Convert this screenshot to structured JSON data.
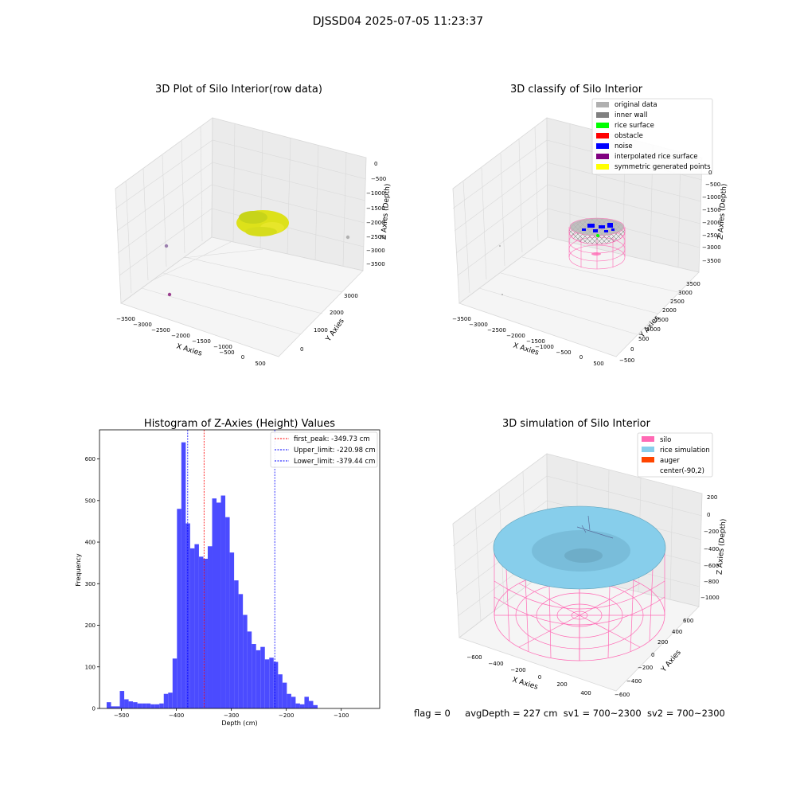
{
  "suptitle": "DJSSD04 2025-07-05 11:23:37",
  "footer": {
    "flag": "flag = 0",
    "avg_depth": "avgDepth = 227 cm",
    "sv1": "sv1 = 700~2300",
    "sv2": "sv2 = 700~2300"
  },
  "chart_data": [
    {
      "type": "scatter",
      "projection": "3d",
      "title": "3D Plot of Silo Interior(row data)",
      "xlabel": "X Axies",
      "ylabel": "Y Axies",
      "zlabel": "Z Axies (Depth)",
      "xticks": [
        "−3500",
        "−3000",
        "−2500",
        "−2000",
        "−1500",
        "−1000",
        "−500",
        "0",
        "500"
      ],
      "yticks": [
        "0",
        "1000",
        "2000",
        "3000"
      ],
      "zticks": [
        "0",
        "−500",
        "−1000",
        "−1500",
        "−2000",
        "−2500",
        "−3000",
        "−3500"
      ],
      "xlim": [
        -3700,
        650
      ],
      "ylim": [
        -400,
        3600
      ],
      "zlim": [
        -3700,
        100
      ],
      "clusters": [
        {
          "name": "rice cloud",
          "x_center": -300,
          "y_center": 1600,
          "z_center": -2000,
          "color": "#e2e21b"
        }
      ],
      "outliers": [
        {
          "x": -3400,
          "y": 1500,
          "z": -1500,
          "color": "#9b7fae"
        },
        {
          "x": -2300,
          "y": 300,
          "z": -2500,
          "color": "#9b3f8f"
        },
        {
          "x": 400,
          "y": 2800,
          "z": -800,
          "color": "#b0b0b0"
        }
      ]
    },
    {
      "type": "scatter",
      "projection": "3d",
      "title": "3D classify of Silo Interior",
      "xlabel": "X Axies",
      "ylabel": "Y Axies",
      "zlabel": "Z Axies (Depth)",
      "xticks": [
        "−3500",
        "−3000",
        "−2500",
        "−2000",
        "−1500",
        "−1000",
        "−500",
        "0",
        "500"
      ],
      "yticks": [
        "−500",
        "0",
        "500",
        "1000",
        "1500",
        "2000",
        "2500",
        "3000",
        "3500"
      ],
      "zticks": [
        "0",
        "−500",
        "−1000",
        "−1500",
        "−2000",
        "−2500",
        "−3000",
        "−3500"
      ],
      "legend": [
        {
          "label": "original data",
          "color": "#b0b0b0"
        },
        {
          "label": "inner wall",
          "color": "#808080"
        },
        {
          "label": "rice surface",
          "color": "#00ff00"
        },
        {
          "label": "obstacle",
          "color": "#ff0000"
        },
        {
          "label": "noise",
          "color": "#0000ff"
        },
        {
          "label": "interpolated rice surface",
          "color": "#800080"
        },
        {
          "label": "symmetric generated points",
          "color": "#ffff00"
        }
      ],
      "legend_position": "top-right"
    },
    {
      "type": "bar",
      "title": "Histogram of Z-Axies (Height) Values",
      "xlabel": "Depth (cm)",
      "ylabel": "Frequency",
      "bar_color": "#4b4bff",
      "bin_start": -527,
      "bin_width": 8.0,
      "values": [
        15,
        5,
        5,
        42,
        22,
        17,
        15,
        12,
        12,
        12,
        10,
        10,
        12,
        35,
        38,
        120,
        480,
        640,
        445,
        385,
        395,
        365,
        360,
        390,
        505,
        495,
        512,
        460,
        375,
        308,
        275,
        225,
        185,
        155,
        140,
        148,
        118,
        122,
        112,
        82,
        62,
        35,
        28,
        12,
        10,
        28,
        18,
        8
      ],
      "xlim": [
        -540,
        -30
      ],
      "ylim": [
        0,
        670
      ],
      "xticks": [
        -500,
        -400,
        -300,
        -200,
        -100
      ],
      "yticks": [
        0,
        100,
        200,
        300,
        400,
        500,
        600
      ],
      "vlines": [
        {
          "label": "first_peak: -349.73 cm",
          "x": -349.73,
          "color": "#ff0000"
        },
        {
          "label": "Upper_limit: -220.98 cm",
          "x": -220.98,
          "color": "#0000ff"
        },
        {
          "label": "Lower_limit: -379.44 cm",
          "x": -379.44,
          "color": "#0000ff"
        }
      ],
      "legend_position": "top-right"
    },
    {
      "type": "surface",
      "projection": "3d",
      "title": "3D simulation of Silo Interior",
      "xlabel": "X Axies",
      "ylabel": "Y Axies",
      "zlabel": "Z Axies (Depth)",
      "xticks": [
        "−600",
        "−400",
        "−200",
        "0",
        "200",
        "400"
      ],
      "yticks": [
        "−600",
        "−400",
        "−200",
        "0",
        "200",
        "400",
        "600"
      ],
      "zticks": [
        "200",
        "0",
        "−200",
        "−400",
        "−600",
        "−800",
        "−1000"
      ],
      "legend": [
        {
          "label": "silo",
          "color": "#ff69b4"
        },
        {
          "label": "rice simulation",
          "color": "#87ceeb"
        },
        {
          "label": "auger",
          "color": "#ff4500"
        },
        {
          "label": "center(-90,2)",
          "color": ""
        }
      ],
      "legend_position": "top-right"
    }
  ]
}
